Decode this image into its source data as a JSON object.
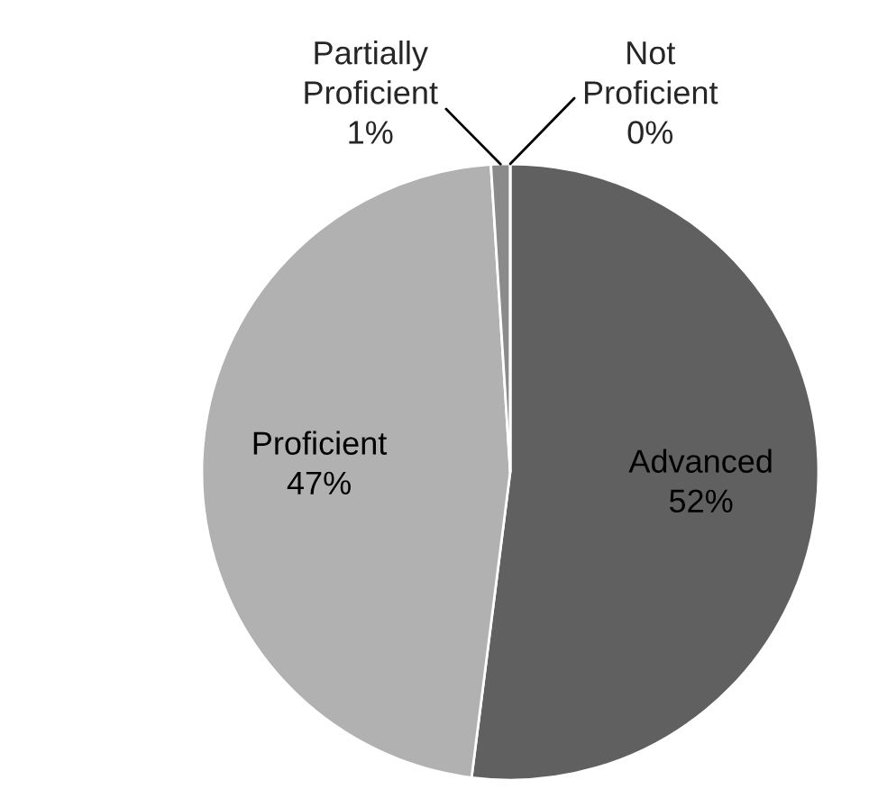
{
  "chart_data": {
    "type": "pie",
    "categories": [
      "Advanced",
      "Proficient",
      "Partially Proficient",
      "Not Proficient"
    ],
    "values": [
      52,
      47,
      1,
      0
    ],
    "value_labels": [
      "52%",
      "47%",
      "1%",
      "0%"
    ],
    "colors": [
      "#606060",
      "#b1b1b1",
      "#8a8a8a",
      "#3f3f3f"
    ],
    "legend": false
  }
}
